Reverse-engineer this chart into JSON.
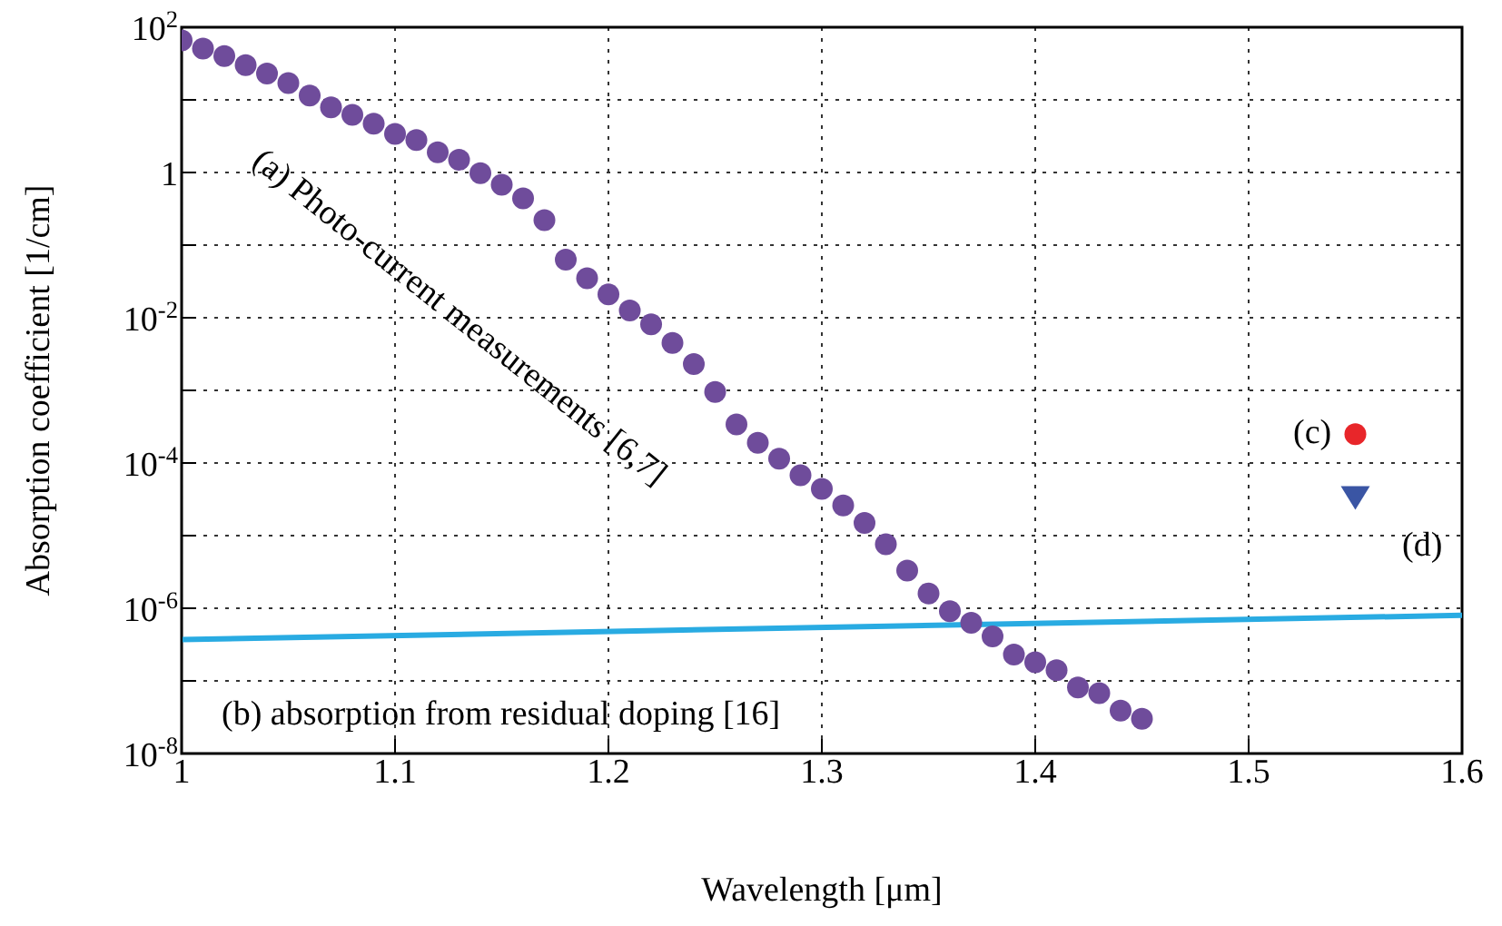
{
  "chart_data": {
    "type": "scatter",
    "xlabel": "Wavelength [μm]",
    "ylabel": "Absorption coefficient [1/cm]",
    "log": "y",
    "grid": true,
    "legend": false,
    "xlim": [
      1.0,
      1.6
    ],
    "xticks": [
      1,
      1.1,
      1.2,
      1.3,
      1.4,
      1.5,
      1.6
    ],
    "ylim": [
      1e-08,
      100
    ],
    "yticks": [
      {
        "value": 100,
        "label": "10$^{2}$"
      },
      {
        "value": 10,
        "label": null
      },
      1,
      {
        "value": 0.1,
        "label": null
      },
      {
        "value": 0.01,
        "label": "10$^{-2}$"
      },
      {
        "value": 0.001,
        "label": null
      },
      {
        "value": 0.0001,
        "label": "10$^{-4}$"
      },
      {
        "value": 1e-05,
        "label": null
      },
      {
        "value": 1e-06,
        "label": "10$^{-6}$"
      },
      {
        "value": 1e-07,
        "label": null
      },
      {
        "value": 1e-08,
        "label": "10$^{-8}$"
      }
    ],
    "annotations": [
      "(a) Photo-current measurements [6,7]",
      "(b) absorption from residual doping [16]",
      "(c)",
      "(d)"
    ],
    "series": [
      {
        "marker": "circle",
        "color": "#6f4c9b",
        "x": [
          1.0,
          1.01,
          1.02,
          1.03,
          1.04,
          1.05,
          1.06,
          1.07,
          1.08,
          1.09,
          1.1,
          1.11,
          1.12,
          1.13,
          1.14,
          1.15,
          1.16,
          1.17,
          1.18,
          1.19,
          1.2,
          1.21,
          1.22,
          1.23,
          1.24,
          1.25,
          1.26,
          1.27,
          1.28,
          1.29,
          1.3,
          1.31,
          1.32,
          1.33,
          1.34,
          1.35,
          1.36,
          1.37,
          1.38,
          1.39,
          1.4,
          1.41,
          1.42,
          1.43,
          1.44,
          1.45
        ],
        "values": [
          66,
          51,
          40,
          30,
          23,
          17,
          11.5,
          7.9,
          6.2,
          4.7,
          3.4,
          2.8,
          1.9,
          1.5,
          0.98,
          0.68,
          0.44,
          0.22,
          0.063,
          0.035,
          0.021,
          0.0126,
          0.0081,
          0.0045,
          0.0023,
          0.00095,
          0.00034,
          0.00019,
          0.000115,
          6.8e-05,
          4.4e-05,
          2.6e-05,
          1.5e-05,
          7.6e-06,
          3.3e-06,
          1.6e-06,
          9.1e-07,
          6.3e-07,
          4.1e-07,
          2.3e-07,
          1.8e-07,
          1.4e-07,
          8.1e-08,
          6.8e-08,
          3.9e-08,
          3e-08
        ]
      },
      {
        "type": "line",
        "marker": "none",
        "line_style": "solid",
        "color": "#29abe2",
        "x": [
          1.0,
          1.6
        ],
        "values": [
          3.7e-07,
          8e-07
        ]
      },
      {
        "marker": "circle",
        "color": "#e8262a",
        "x": [
          1.55
        ],
        "values": [
          0.00025
        ]
      },
      {
        "marker": "triangle",
        "color": "#3a55a4",
        "x": [
          1.55
        ],
        "values": [
          3.4e-05
        ]
      }
    ]
  }
}
